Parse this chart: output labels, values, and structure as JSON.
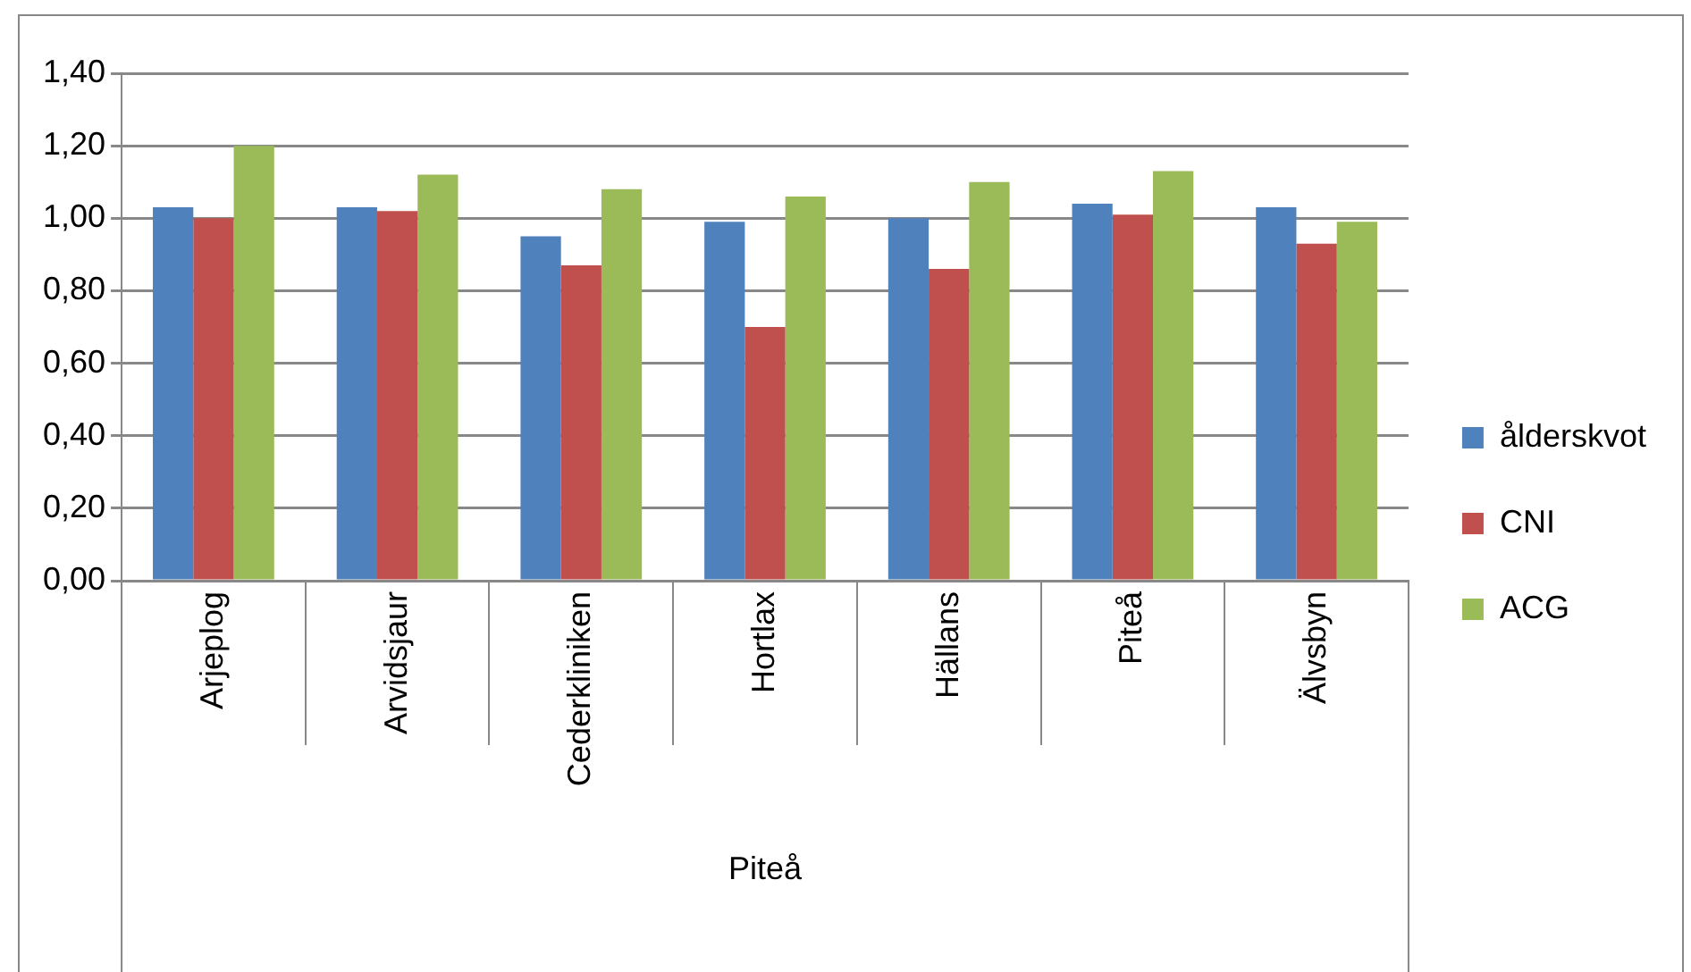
{
  "chart_data": {
    "type": "bar",
    "xlabel": "Piteå",
    "categories": [
      "Arjeplog",
      "Arvidsjaur",
      "Cederkliniken",
      "Hortlax",
      "Hällans",
      "Piteå",
      "Älvsbyn"
    ],
    "series": [
      {
        "name": "ålderskvot",
        "color": "#4f81bd",
        "values": [
          1.03,
          1.03,
          0.95,
          0.99,
          1.0,
          1.04,
          1.03
        ]
      },
      {
        "name": "CNI",
        "color": "#c0504d",
        "values": [
          1.0,
          1.02,
          0.87,
          0.7,
          0.86,
          1.01,
          0.93
        ]
      },
      {
        "name": "ACG",
        "color": "#9bbb59",
        "values": [
          1.2,
          1.12,
          1.08,
          1.06,
          1.1,
          1.13,
          0.99
        ]
      }
    ],
    "ylim": [
      0,
      1.4
    ],
    "yticks": [
      {
        "value": 0,
        "label": "0,00"
      },
      {
        "value": 0.2,
        "label": "0,20"
      },
      {
        "value": 0.4,
        "label": "0,40"
      },
      {
        "value": 0.6,
        "label": "0,60"
      },
      {
        "value": 0.8,
        "label": "0,80"
      },
      {
        "value": 1.0,
        "label": "1,00"
      },
      {
        "value": 1.2,
        "label": "1,20"
      },
      {
        "value": 1.4,
        "label": "1,40"
      }
    ],
    "grid": "y",
    "legend": "right"
  }
}
